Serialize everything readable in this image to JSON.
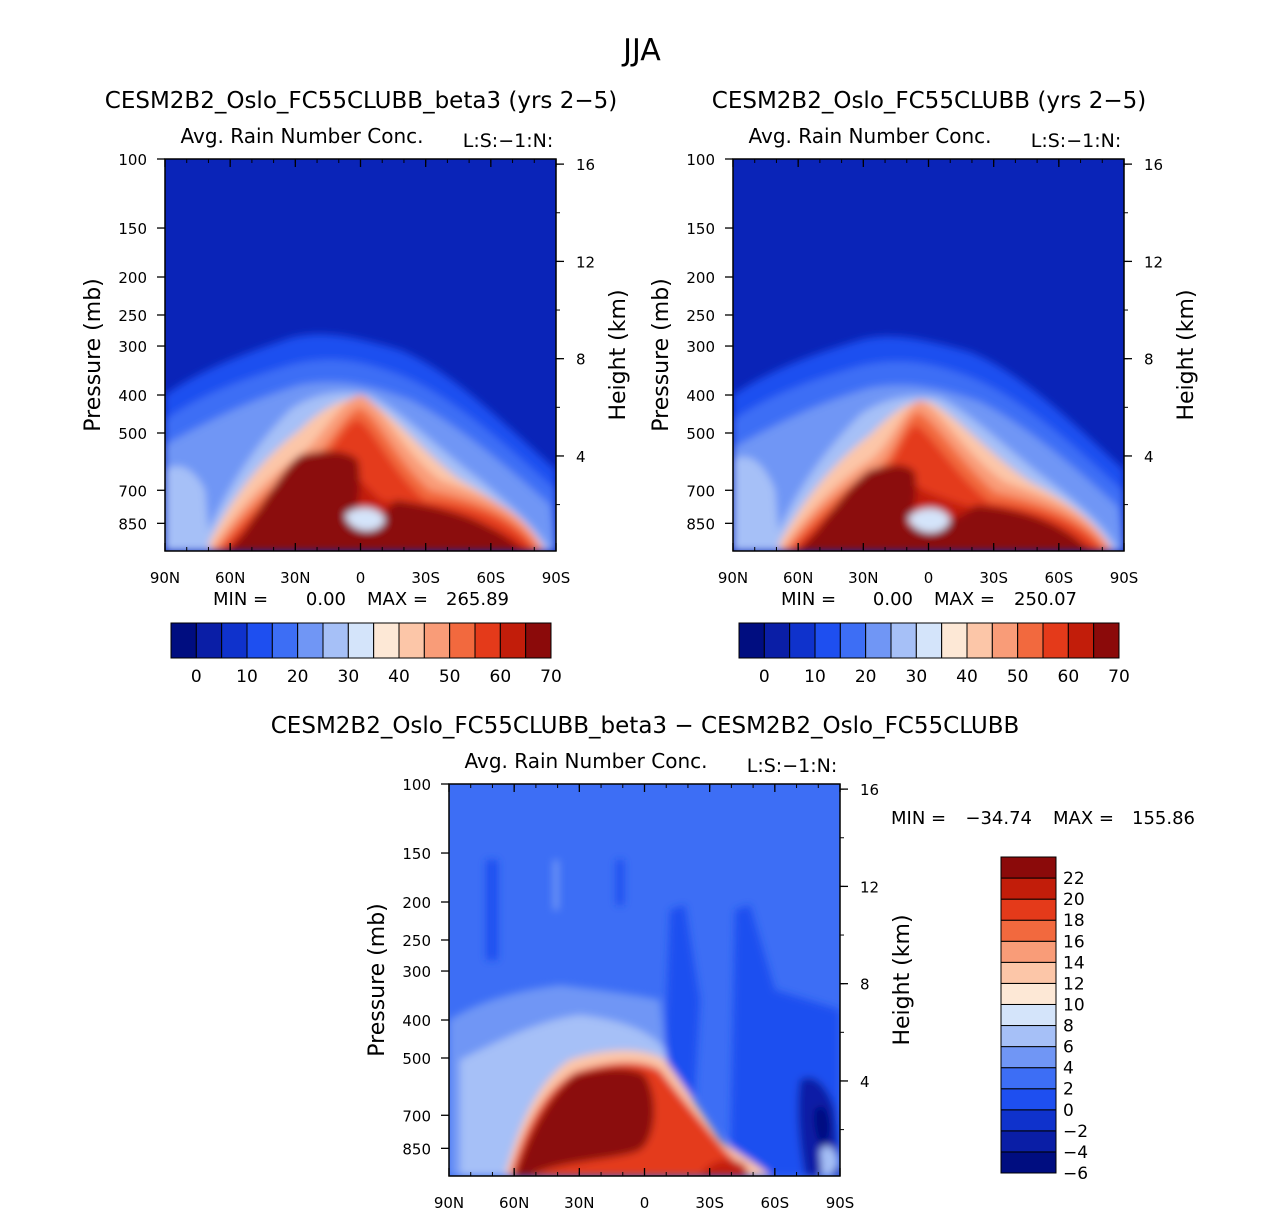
{
  "season": "JJA",
  "colors": {
    "seq": [
      "#000d80",
      "#0a1ea6",
      "#0f32cc",
      "#1e4ff0",
      "#3d6ef5",
      "#7096f5",
      "#a6c0f7",
      "#d4e4fa",
      "#fde8d6",
      "#fcc6a8",
      "#f99c78",
      "#f2693e",
      "#e43a1a",
      "#c21d0a",
      "#8b0a0a"
    ],
    "diff": [
      "#000d80",
      "#0a1ea6",
      "#0f32cc",
      "#1e4ff0",
      "#3d6ef5",
      "#7096f5",
      "#a6c0f7",
      "#d4e4fa",
      "#fde8d6",
      "#fcc6a8",
      "#f99c78",
      "#f2693e",
      "#e43a1a",
      "#c21d0a",
      "#8b0a0a"
    ]
  },
  "chart_data": [
    {
      "type": "heatmap",
      "title": "CESM2B2_Oslo_FC55CLUBB_beta3 (yrs 2−5)",
      "subtitle": "Avg. Rain Number Conc.",
      "corner_label": "L:S:−1:N:",
      "ylabel": "Pressure (mb)",
      "ylabel_right": "Height (km)",
      "x_ticks": [
        "90N",
        "60N",
        "30N",
        "0",
        "30S",
        "60S",
        "90S"
      ],
      "x_values": [
        90,
        60,
        30,
        0,
        -30,
        -60,
        -90
      ],
      "y_ticks": [
        "100",
        "150",
        "200",
        "250",
        "300",
        "400",
        "500",
        "700",
        "850"
      ],
      "y_values": [
        100,
        150,
        200,
        250,
        300,
        400,
        500,
        700,
        850
      ],
      "ylim": [
        100,
        1000
      ],
      "height_ticks": [
        "16",
        "12",
        "8",
        "4"
      ],
      "height_values": [
        16,
        12,
        8,
        4
      ],
      "min_label": "MIN =",
      "min_value": "0.00",
      "max_label": "MAX =",
      "max_value": "265.89",
      "colorbar_labels": [
        "0",
        "10",
        "20",
        "30",
        "40",
        "50",
        "60",
        "70"
      ],
      "levels": [
        0,
        5,
        10,
        15,
        20,
        25,
        30,
        35,
        40,
        45,
        50,
        55,
        60,
        65,
        70
      ]
    },
    {
      "type": "heatmap",
      "title": "CESM2B2_Oslo_FC55CLUBB (yrs 2−5)",
      "subtitle": "Avg. Rain Number Conc.",
      "corner_label": "L:S:−1:N:",
      "ylabel": "Pressure (mb)",
      "ylabel_right": "Height (km)",
      "x_ticks": [
        "90N",
        "60N",
        "30N",
        "0",
        "30S",
        "60S",
        "90S"
      ],
      "x_values": [
        90,
        60,
        30,
        0,
        -30,
        -60,
        -90
      ],
      "y_ticks": [
        "100",
        "150",
        "200",
        "250",
        "300",
        "400",
        "500",
        "700",
        "850"
      ],
      "y_values": [
        100,
        150,
        200,
        250,
        300,
        400,
        500,
        700,
        850
      ],
      "ylim": [
        100,
        1000
      ],
      "height_ticks": [
        "16",
        "12",
        "8",
        "4"
      ],
      "height_values": [
        16,
        12,
        8,
        4
      ],
      "min_label": "MIN =",
      "min_value": "0.00",
      "max_label": "MAX =",
      "max_value": "250.07",
      "colorbar_labels": [
        "0",
        "10",
        "20",
        "30",
        "40",
        "50",
        "60",
        "70"
      ],
      "levels": [
        0,
        5,
        10,
        15,
        20,
        25,
        30,
        35,
        40,
        45,
        50,
        55,
        60,
        65,
        70
      ]
    },
    {
      "type": "heatmap",
      "title": "CESM2B2_Oslo_FC55CLUBB_beta3 − CESM2B2_Oslo_FC55CLUBB",
      "subtitle": "Avg. Rain Number Conc.",
      "corner_label": "L:S:−1:N:",
      "ylabel": "Pressure (mb)",
      "ylabel_right": "Height (km)",
      "x_ticks": [
        "90N",
        "60N",
        "30N",
        "0",
        "30S",
        "60S",
        "90S"
      ],
      "x_values": [
        90,
        60,
        30,
        0,
        -30,
        -60,
        -90
      ],
      "y_ticks": [
        "100",
        "150",
        "200",
        "250",
        "300",
        "400",
        "500",
        "700",
        "850"
      ],
      "y_values": [
        100,
        150,
        200,
        250,
        300,
        400,
        500,
        700,
        850
      ],
      "ylim": [
        100,
        1000
      ],
      "height_ticks": [
        "16",
        "12",
        "8",
        "4"
      ],
      "height_values": [
        16,
        12,
        8,
        4
      ],
      "min_label": "MIN =",
      "min_value": "−34.74",
      "max_label": "MAX =",
      "max_value": "155.86",
      "colorbar_labels": [
        "22",
        "20",
        "18",
        "16",
        "14",
        "12",
        "10",
        "8",
        "6",
        "4",
        "2",
        "0",
        "−2",
        "−4",
        "−6"
      ],
      "levels": [
        -8,
        -6,
        -4,
        -2,
        0,
        2,
        4,
        6,
        8,
        10,
        12,
        14,
        16,
        18,
        20,
        22
      ]
    }
  ]
}
